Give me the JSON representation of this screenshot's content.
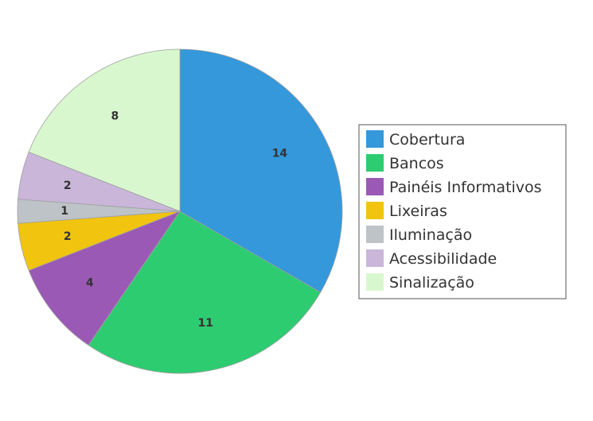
{
  "chart_data": {
    "type": "pie",
    "title": "",
    "categories": [
      "Cobertura",
      "Bancos",
      "Painéis Informativos",
      "Lixeiras",
      "Iluminação",
      "Acessibilidade",
      "Sinalização"
    ],
    "values": [
      14,
      11,
      4,
      2,
      1,
      2,
      8
    ],
    "colors": [
      "#3498db",
      "#2ecc71",
      "#9b59b6",
      "#f1c40f",
      "#bdc3c7",
      "#c9b6d9",
      "#d9f7cf"
    ],
    "start_angle": "12 o'clock",
    "direction": "clockwise",
    "data_labels": true,
    "legend_position": "right"
  }
}
